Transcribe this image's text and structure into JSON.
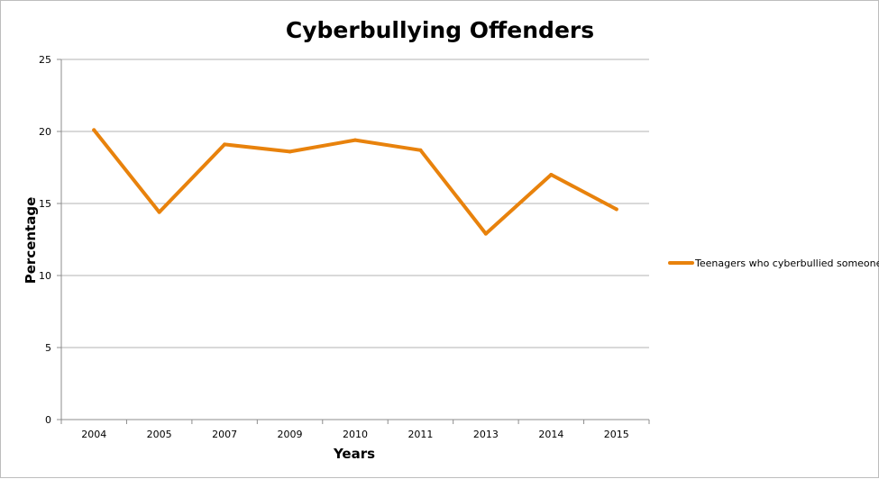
{
  "chart_data": {
    "type": "line",
    "title": "Cyberbullying Offenders",
    "xlabel": "Years",
    "ylabel": "Percentage",
    "categories": [
      "2004",
      "2005",
      "2007",
      "2009",
      "2010",
      "2011",
      "2013",
      "2014",
      "2015"
    ],
    "series": [
      {
        "name": "Teenagers who cyberbullied someone",
        "values": [
          20.1,
          14.4,
          19.1,
          18.6,
          19.4,
          18.7,
          12.9,
          17.0,
          14.6
        ],
        "color": "#e8820c"
      }
    ],
    "ylim": [
      0,
      25
    ],
    "yticks": [
      "0",
      "5",
      "10",
      "15",
      "20",
      "25"
    ],
    "grid": "horizontal",
    "legend_position": "right"
  }
}
